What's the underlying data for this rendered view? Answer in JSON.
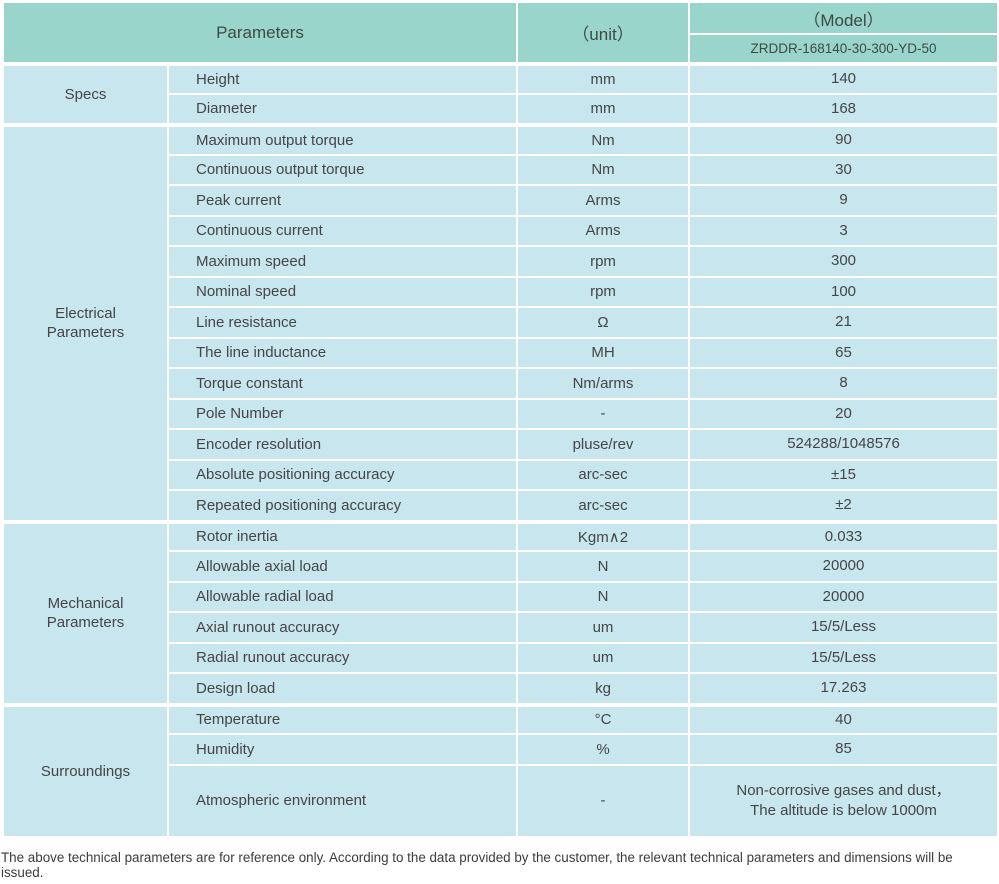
{
  "table": {
    "header": {
      "parameters_label": "Parameters",
      "unit_label": "（unit）",
      "model_label": "（Model）",
      "model_value": "ZRDDR-168140-30-300-YD-50"
    },
    "sections": [
      {
        "group": "Specs",
        "rows": [
          {
            "param": "Height",
            "unit": "mm",
            "value": "140"
          },
          {
            "param": "Diameter",
            "unit": "mm",
            "value": "168"
          }
        ]
      },
      {
        "group": "Electrical\nParameters",
        "rows": [
          {
            "param": "Maximum output torque",
            "unit": "Nm",
            "value": "90"
          },
          {
            "param": "Continuous output torque",
            "unit": "Nm",
            "value": "30"
          },
          {
            "param": "Peak current",
            "unit": "Arms",
            "value": "9"
          },
          {
            "param": "Continuous current",
            "unit": "Arms",
            "value": "3"
          },
          {
            "param": "Maximum speed",
            "unit": "rpm",
            "value": "300"
          },
          {
            "param": "Nominal speed",
            "unit": "rpm",
            "value": "100"
          },
          {
            "param": "Line resistance",
            "unit": "Ω",
            "value": "21"
          },
          {
            "param": "The line inductance",
            "unit": "MH",
            "value": "65"
          },
          {
            "param": "Torque constant",
            "unit": "Nm/arms",
            "value": "8"
          },
          {
            "param": "Pole Number",
            "unit": "-",
            "value": "20"
          },
          {
            "param": "Encoder resolution",
            "unit": "pluse/rev",
            "value": "524288/1048576"
          },
          {
            "param": "Absolute positioning accuracy",
            "unit": "arc-sec",
            "value": "±15"
          },
          {
            "param": "Repeated positioning accuracy",
            "unit": "arc-sec",
            "value": "±2"
          }
        ]
      },
      {
        "group": "Mechanical\nParameters",
        "rows": [
          {
            "param": "Rotor inertia",
            "unit": "Kgm∧2",
            "value": "0.033"
          },
          {
            "param": "Allowable axial load",
            "unit": "N",
            "value": "20000"
          },
          {
            "param": "Allowable radial load",
            "unit": "N",
            "value": "20000"
          },
          {
            "param": "Axial runout accuracy",
            "unit": "um",
            "value": "15/5/Less"
          },
          {
            "param": "Radial runout accuracy",
            "unit": "um",
            "value": "15/5/Less"
          },
          {
            "param": "Design load",
            "unit": "kg",
            "value": "17.263"
          }
        ]
      },
      {
        "group": "Surroundings",
        "rows": [
          {
            "param": "Temperature",
            "unit": "°C",
            "value": "40"
          },
          {
            "param": "Humidity",
            "unit": "%",
            "value": "85"
          },
          {
            "param": "Atmospheric environment",
            "unit": "-",
            "value": "Non-corrosive gases and dust，\nThe altitude is below 1000m"
          }
        ]
      }
    ]
  },
  "footer": {
    "note": "The above technical parameters are for reference only. According to the data provided by the customer, the relevant technical parameters and dimensions will be issued."
  },
  "colors": {
    "header_bg": "#9ad5cb",
    "cell_bg": "#c8e6ee",
    "grid": "#ffffff",
    "text": "#454545"
  }
}
